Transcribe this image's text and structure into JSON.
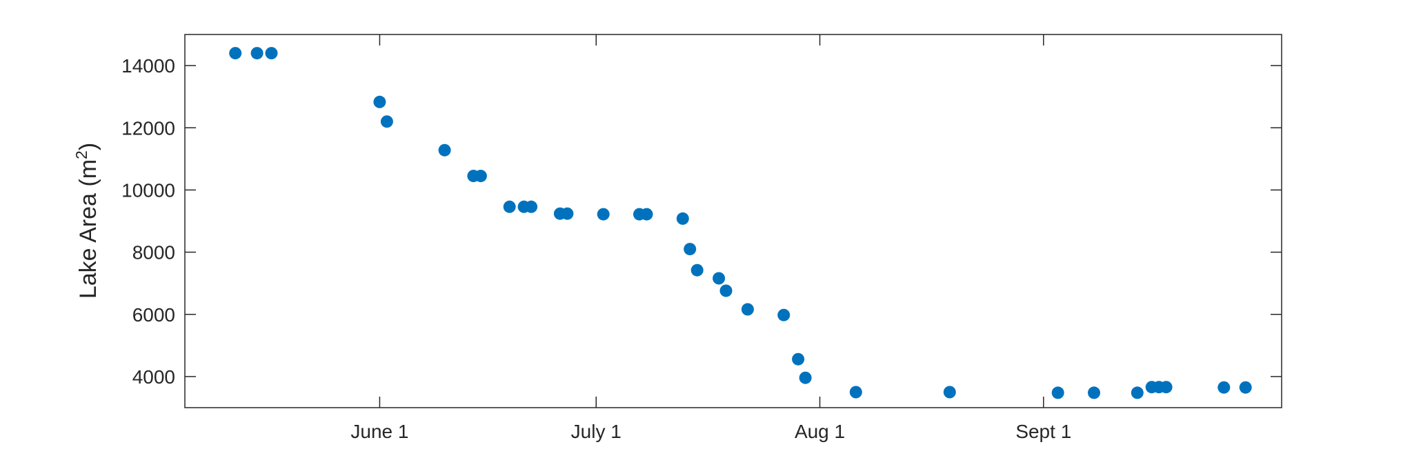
{
  "chart_data": {
    "type": "scatter",
    "title": "",
    "xlabel": "",
    "ylabel": "Lake Area (m",
    "ylabel_sup": "2",
    "ylabel_close": ")",
    "xlim": [
      "2023-05-05",
      "2023-10-04"
    ],
    "ylim": [
      3000,
      15000
    ],
    "grid": false,
    "marker_color": "#0072BD",
    "axis_color": "#262626",
    "x_ticks": [
      {
        "date": "2023-06-01",
        "label": "June 1"
      },
      {
        "date": "2023-07-01",
        "label": "July 1"
      },
      {
        "date": "2023-08-01",
        "label": "Aug 1"
      },
      {
        "date": "2023-09-01",
        "label": "Sept 1"
      }
    ],
    "y_ticks": [
      4000,
      6000,
      8000,
      10000,
      12000,
      14000
    ],
    "points": [
      {
        "x": "2023-05-12",
        "y": 14400
      },
      {
        "x": "2023-05-15",
        "y": 14400
      },
      {
        "x": "2023-05-17",
        "y": 14400
      },
      {
        "x": "2023-06-01",
        "y": 12830
      },
      {
        "x": "2023-06-02",
        "y": 12200
      },
      {
        "x": "2023-06-10",
        "y": 11280
      },
      {
        "x": "2023-06-14",
        "y": 10450
      },
      {
        "x": "2023-06-15",
        "y": 10450
      },
      {
        "x": "2023-06-19",
        "y": 9460
      },
      {
        "x": "2023-06-21",
        "y": 9460
      },
      {
        "x": "2023-06-22",
        "y": 9460
      },
      {
        "x": "2023-06-26",
        "y": 9240
      },
      {
        "x": "2023-06-27",
        "y": 9240
      },
      {
        "x": "2023-07-02",
        "y": 9220
      },
      {
        "x": "2023-07-07",
        "y": 9220
      },
      {
        "x": "2023-07-08",
        "y": 9220
      },
      {
        "x": "2023-07-13",
        "y": 9080
      },
      {
        "x": "2023-07-14",
        "y": 8100
      },
      {
        "x": "2023-07-15",
        "y": 7420
      },
      {
        "x": "2023-07-18",
        "y": 7160
      },
      {
        "x": "2023-07-19",
        "y": 6760
      },
      {
        "x": "2023-07-22",
        "y": 6160
      },
      {
        "x": "2023-07-27",
        "y": 5980
      },
      {
        "x": "2023-07-29",
        "y": 4560
      },
      {
        "x": "2023-07-30",
        "y": 3960
      },
      {
        "x": "2023-08-06",
        "y": 3500
      },
      {
        "x": "2023-08-19",
        "y": 3500
      },
      {
        "x": "2023-09-03",
        "y": 3480
      },
      {
        "x": "2023-09-08",
        "y": 3480
      },
      {
        "x": "2023-09-14",
        "y": 3480
      },
      {
        "x": "2023-09-16",
        "y": 3660
      },
      {
        "x": "2023-09-17",
        "y": 3660
      },
      {
        "x": "2023-09-18",
        "y": 3660
      },
      {
        "x": "2023-09-26",
        "y": 3650
      },
      {
        "x": "2023-09-29",
        "y": 3650
      }
    ]
  }
}
